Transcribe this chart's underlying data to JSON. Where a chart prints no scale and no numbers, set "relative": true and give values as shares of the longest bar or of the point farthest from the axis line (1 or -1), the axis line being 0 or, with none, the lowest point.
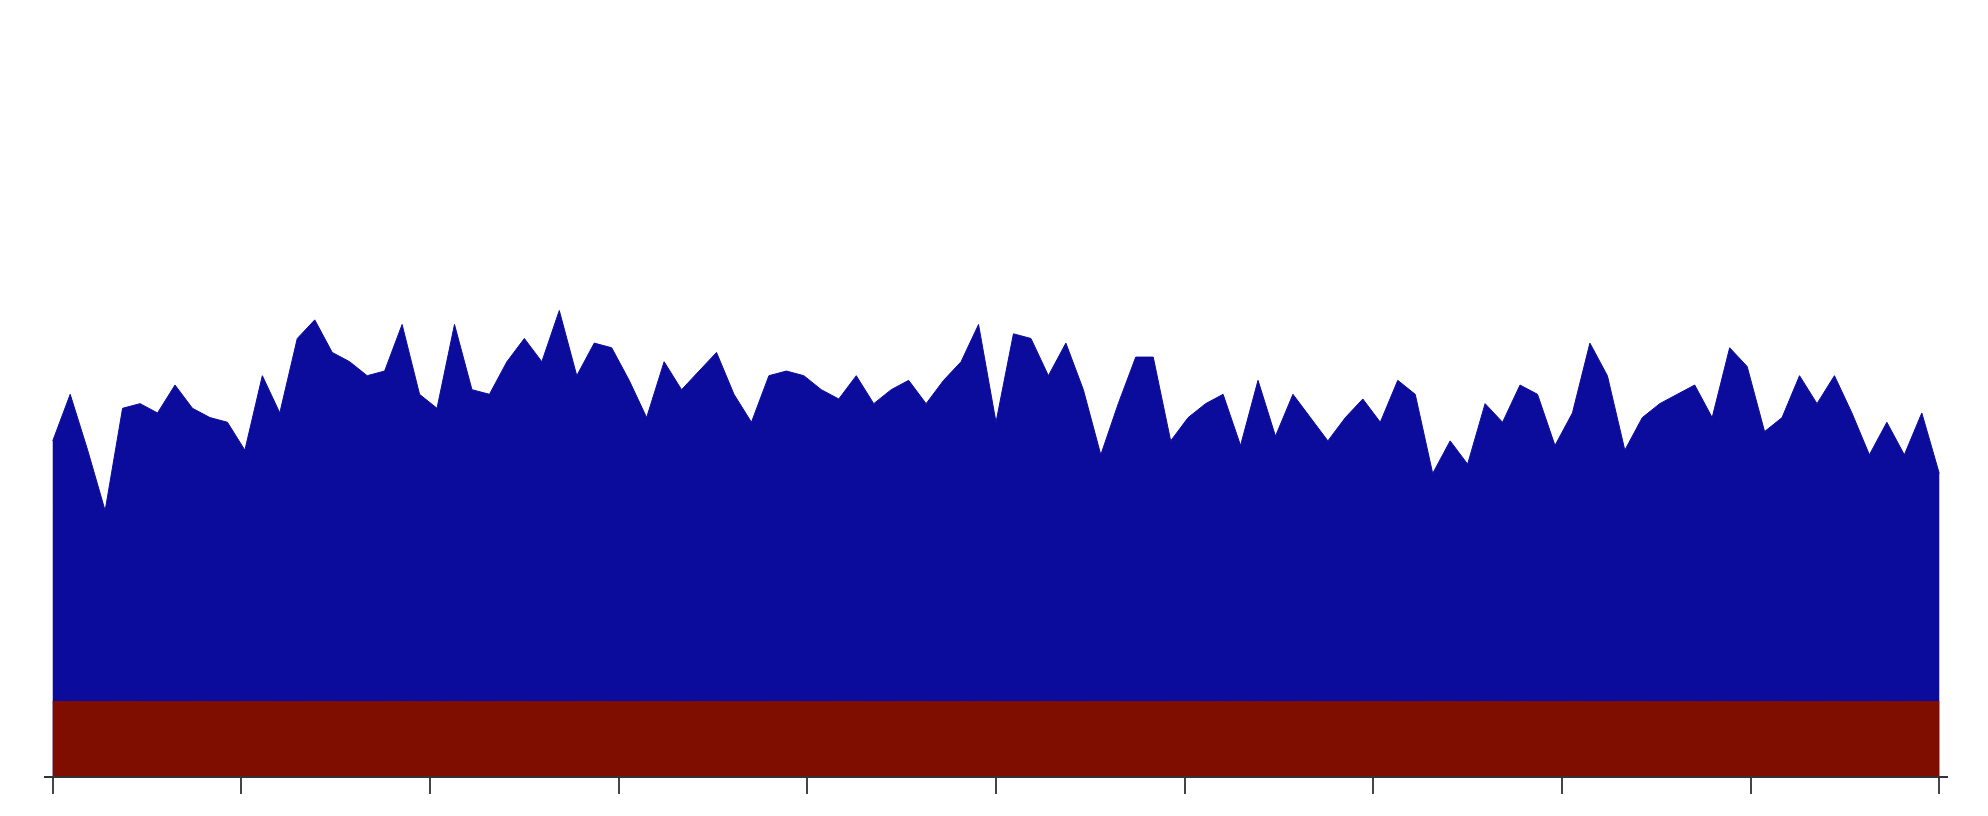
{
  "chart_data": {
    "type": "area",
    "relative": true,
    "categories": [
      null,
      null,
      null,
      null,
      null,
      null,
      null,
      null,
      null,
      null,
      null,
      null,
      null,
      null,
      null,
      null,
      null,
      null,
      null,
      null,
      null,
      null,
      null,
      null,
      null,
      null,
      null,
      null,
      null,
      null,
      null,
      null,
      null,
      null,
      null,
      null,
      null,
      null,
      null,
      null,
      null,
      null,
      null,
      null,
      null,
      null,
      null,
      null,
      null,
      null,
      null,
      null,
      null,
      null,
      null,
      null,
      null,
      null,
      null,
      null,
      null,
      null,
      null,
      null,
      null,
      null,
      null,
      null,
      null,
      null,
      null,
      null,
      null,
      null,
      null,
      null,
      null,
      null,
      null,
      null,
      null,
      null,
      null,
      null,
      null,
      null,
      null,
      null,
      null,
      null,
      null,
      null,
      null,
      null,
      null,
      null,
      null,
      null,
      null,
      null,
      null,
      null,
      null,
      null,
      null,
      null,
      null,
      null,
      null
    ],
    "series": [
      {
        "color": "#0b0c9c",
        "values": [
          0.72,
          0.82,
          0.7,
          0.57,
          0.79,
          0.8,
          0.78,
          0.84,
          0.79,
          0.77,
          0.76,
          0.7,
          0.86,
          0.78,
          0.94,
          0.98,
          0.91,
          0.89,
          0.86,
          0.87,
          0.97,
          0.82,
          0.79,
          0.97,
          0.83,
          0.82,
          0.89,
          0.94,
          0.89,
          1.0,
          0.86,
          0.93,
          0.92,
          0.85,
          0.77,
          0.89,
          0.83,
          0.87,
          0.91,
          0.82,
          0.76,
          0.86,
          0.87,
          0.86,
          0.83,
          0.81,
          0.86,
          0.8,
          0.83,
          0.85,
          0.8,
          0.85,
          0.89,
          0.97,
          0.76,
          0.95,
          0.94,
          0.86,
          0.93,
          0.83,
          0.69,
          0.8,
          0.9,
          0.9,
          0.72,
          0.77,
          0.8,
          0.82,
          0.71,
          0.85,
          0.73,
          0.82,
          0.77,
          0.72,
          0.77,
          0.81,
          0.76,
          0.85,
          0.82,
          0.65,
          0.72,
          0.67,
          0.8,
          0.76,
          0.84,
          0.82,
          0.71,
          0.78,
          0.93,
          0.86,
          0.7,
          0.77,
          0.8,
          0.82,
          0.84,
          0.77,
          0.92,
          0.88,
          0.74,
          0.77,
          0.86,
          0.8,
          0.86,
          0.78,
          0.69,
          0.76,
          0.69,
          0.78,
          0.65
        ]
      },
      {
        "color": "#7f0e00",
        "values": [
          0.16,
          0.16,
          0.16,
          0.16,
          0.16,
          0.16,
          0.16,
          0.16,
          0.16,
          0.16,
          0.16,
          0.16,
          0.16,
          0.16,
          0.16,
          0.16,
          0.16,
          0.16,
          0.16,
          0.16,
          0.16,
          0.16,
          0.16,
          0.16,
          0.16,
          0.16,
          0.16,
          0.16,
          0.16,
          0.16,
          0.16,
          0.16,
          0.16,
          0.16,
          0.16,
          0.16,
          0.16,
          0.16,
          0.16,
          0.16,
          0.16,
          0.16,
          0.16,
          0.16,
          0.16,
          0.16,
          0.16,
          0.16,
          0.16,
          0.16,
          0.16,
          0.16,
          0.16,
          0.16,
          0.16,
          0.16,
          0.16,
          0.16,
          0.16,
          0.16,
          0.16,
          0.16,
          0.16,
          0.16,
          0.16,
          0.16,
          0.16,
          0.16,
          0.16,
          0.16,
          0.16,
          0.16,
          0.16,
          0.16,
          0.16,
          0.16,
          0.16,
          0.16,
          0.16,
          0.16,
          0.16,
          0.16,
          0.16,
          0.16,
          0.16,
          0.16,
          0.16,
          0.16,
          0.16,
          0.16,
          0.16,
          0.16,
          0.16,
          0.16,
          0.16,
          0.16,
          0.16,
          0.16,
          0.16,
          0.16,
          0.16,
          0.16,
          0.16,
          0.16,
          0.16,
          0.16,
          0.16,
          0.16,
          0.16
        ]
      }
    ]
  }
}
